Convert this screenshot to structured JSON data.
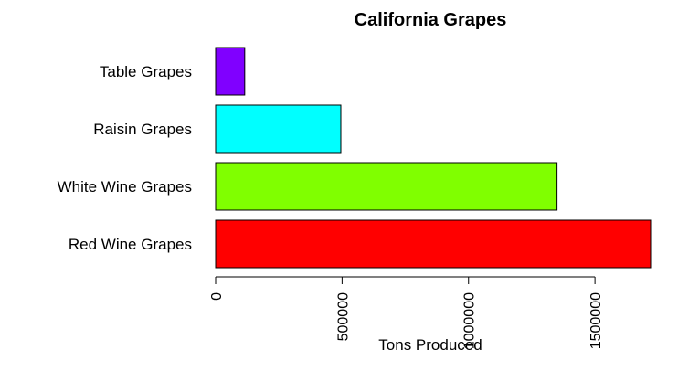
{
  "chart_data": {
    "type": "bar",
    "orientation": "horizontal",
    "title": "California Grapes",
    "xlabel": "Tons Produced",
    "ylabel": "",
    "categories": [
      "Red Wine Grapes",
      "White Wine Grapes",
      "Raisin Grapes",
      "Table Grapes"
    ],
    "values": [
      1720000,
      1350000,
      495000,
      115000
    ],
    "colors": [
      "#ff0000",
      "#80ff00",
      "#00ffff",
      "#8000ff"
    ],
    "xlim": [
      0,
      1720000
    ],
    "xticks": [
      0,
      500000,
      1000000,
      1500000
    ],
    "xtick_labels": [
      "0",
      "500000",
      "1000000",
      "1500000"
    ],
    "grid": false,
    "legend": "none"
  }
}
